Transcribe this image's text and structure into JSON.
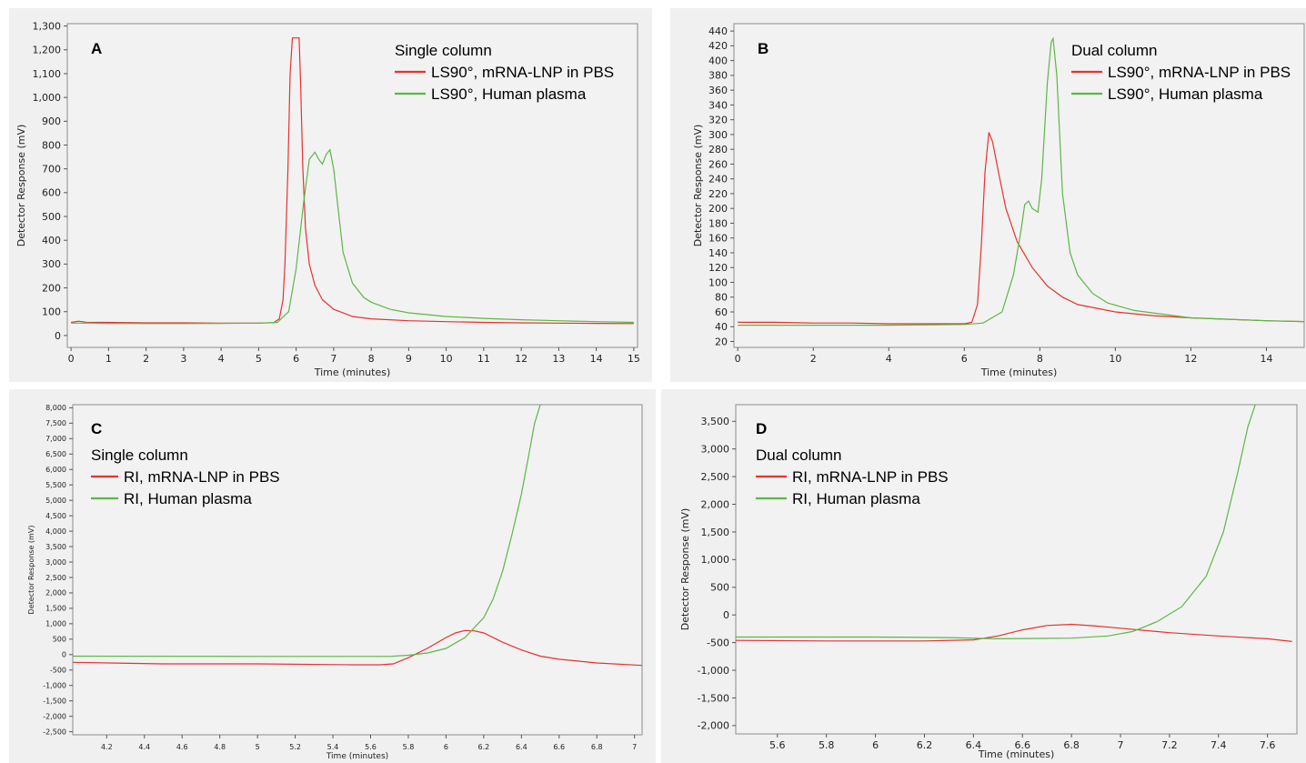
{
  "chart_data": [
    {
      "panel": "A",
      "type": "line",
      "legend_title": "Single column",
      "xlabel": "Time (minutes)",
      "ylabel": "Detector Response (mV)",
      "xlim": [
        -0.1,
        15.1
      ],
      "ylim": [
        -50,
        1310
      ],
      "xticks": [
        0,
        1,
        2,
        3,
        4,
        5,
        6,
        7,
        8,
        9,
        10,
        11,
        12,
        13,
        14,
        15
      ],
      "yticks": [
        0,
        100,
        200,
        300,
        400,
        500,
        600,
        700,
        800,
        900,
        1000,
        1100,
        1200,
        1300
      ],
      "legend_position": "top-right",
      "series": [
        {
          "name": "LS90°, mRNA-LNP in PBS",
          "color": "#e8312e",
          "x": [
            0,
            0.2,
            0.4,
            1,
            2,
            3,
            4,
            5,
            5.4,
            5.55,
            5.65,
            5.7,
            5.78,
            5.84,
            5.9,
            6.08,
            6.12,
            6.18,
            6.25,
            6.35,
            6.5,
            6.7,
            7,
            7.5,
            8,
            9,
            10,
            11,
            12,
            13,
            14,
            15
          ],
          "y": [
            55,
            60,
            56,
            55,
            53,
            53,
            52,
            52,
            54,
            70,
            150,
            300,
            700,
            1100,
            1250,
            1250,
            1050,
            700,
            450,
            300,
            210,
            150,
            110,
            80,
            70,
            62,
            58,
            55,
            53,
            52,
            51,
            50
          ]
        },
        {
          "name": "LS90°, Human plasma",
          "color": "#5ab845",
          "x": [
            0,
            0.5,
            1,
            2,
            3,
            4,
            5,
            5.5,
            5.8,
            6,
            6.2,
            6.35,
            6.5,
            6.6,
            6.7,
            6.8,
            6.9,
            7,
            7.1,
            7.25,
            7.5,
            7.8,
            8,
            8.5,
            9,
            10,
            11,
            12,
            13,
            14,
            15
          ],
          "y": [
            52,
            52,
            51,
            50,
            50,
            51,
            52,
            55,
            100,
            280,
            560,
            740,
            770,
            740,
            720,
            760,
            780,
            700,
            560,
            350,
            220,
            160,
            140,
            110,
            95,
            80,
            72,
            66,
            62,
            58,
            55
          ]
        }
      ]
    },
    {
      "panel": "B",
      "type": "line",
      "legend_title": "Dual column",
      "xlabel": "Time (minutes)",
      "ylabel": "Detector Response (mV)",
      "xlim": [
        -0.1,
        15
      ],
      "ylim": [
        12,
        450
      ],
      "xticks": [
        0,
        2,
        4,
        6,
        8,
        10,
        12,
        14
      ],
      "yticks": [
        20,
        40,
        60,
        80,
        100,
        120,
        140,
        160,
        180,
        200,
        220,
        240,
        260,
        280,
        300,
        320,
        340,
        360,
        380,
        400,
        420,
        440
      ],
      "legend_position": "top-right",
      "series": [
        {
          "name": "LS90°, mRNA-LNP in PBS",
          "color": "#e8312e",
          "x": [
            0,
            1,
            2,
            3,
            4,
            5,
            6,
            6.2,
            6.35,
            6.45,
            6.55,
            6.65,
            6.75,
            6.9,
            7.1,
            7.4,
            7.8,
            8.2,
            8.6,
            9,
            10,
            11,
            12,
            13,
            14,
            15
          ],
          "y": [
            46,
            46,
            45,
            45,
            44,
            44,
            44,
            46,
            70,
            150,
            250,
            303,
            290,
            250,
            200,
            155,
            120,
            95,
            80,
            70,
            60,
            55,
            52,
            50,
            48,
            47
          ]
        },
        {
          "name": "LS90°, Human plasma",
          "color": "#5ab845",
          "x": [
            0,
            2,
            4,
            6,
            6.5,
            7,
            7.3,
            7.5,
            7.6,
            7.7,
            7.8,
            7.95,
            8.05,
            8.2,
            8.3,
            8.35,
            8.45,
            8.6,
            8.8,
            9,
            9.4,
            9.8,
            10.5,
            12,
            14,
            15
          ],
          "y": [
            42,
            42,
            42,
            43,
            45,
            60,
            110,
            170,
            205,
            210,
            200,
            195,
            240,
            370,
            425,
            430,
            380,
            220,
            140,
            110,
            85,
            72,
            62,
            52,
            48,
            47
          ]
        }
      ]
    },
    {
      "panel": "C",
      "type": "line",
      "legend_title": "Single column",
      "xlabel": "Time (minutes)",
      "ylabel": "Detector Response (mV)",
      "xlim": [
        4.02,
        7.04
      ],
      "ylim": [
        -2600,
        8100
      ],
      "xticks": [
        4.2,
        4.4,
        4.6,
        4.8,
        5,
        5.2,
        5.4,
        5.6,
        5.8,
        6,
        6.2,
        6.4,
        6.6,
        6.8,
        7
      ],
      "yticks": [
        -2500,
        -2000,
        -1500,
        -1000,
        -500,
        0,
        500,
        1000,
        1500,
        2000,
        2500,
        3000,
        3500,
        4000,
        4500,
        5000,
        5500,
        6000,
        6500,
        7000,
        7500,
        8000
      ],
      "legend_position": "top-left",
      "series": [
        {
          "name": "RI, mRNA-LNP in PBS",
          "color": "#e8312e",
          "x": [
            4.02,
            4.5,
            5,
            5.5,
            5.65,
            5.72,
            5.8,
            5.9,
            6,
            6.05,
            6.1,
            6.15,
            6.2,
            6.3,
            6.4,
            6.5,
            6.6,
            6.8,
            7.04
          ],
          "y": [
            -250,
            -300,
            -300,
            -330,
            -330,
            -300,
            -100,
            200,
            550,
            700,
            780,
            770,
            700,
            400,
            150,
            -50,
            -150,
            -270,
            -350
          ]
        },
        {
          "name": "RI, Human plasma",
          "color": "#5ab845",
          "x": [
            4.02,
            5,
            5.7,
            5.8,
            5.9,
            6,
            6.1,
            6.2,
            6.25,
            6.3,
            6.35,
            6.4,
            6.44,
            6.47,
            6.5
          ],
          "y": [
            -50,
            -60,
            -60,
            -20,
            50,
            200,
            550,
            1200,
            1800,
            2700,
            3900,
            5200,
            6500,
            7500,
            8100
          ]
        }
      ]
    },
    {
      "panel": "D",
      "type": "line",
      "legend_title": "Dual column",
      "xlabel": "Time (minutes)",
      "ylabel": "Detector Response (mV)",
      "xlim": [
        5.43,
        7.72
      ],
      "ylim": [
        -2150,
        3800
      ],
      "xticks": [
        5.6,
        5.8,
        6,
        6.2,
        6.4,
        6.6,
        6.8,
        7,
        7.2,
        7.4,
        7.6
      ],
      "yticks": [
        -2000,
        -1500,
        -1000,
        -500,
        0,
        500,
        1000,
        1500,
        2000,
        2500,
        3000,
        3500
      ],
      "legend_position": "top-left",
      "series": [
        {
          "name": "RI, mRNA-LNP in PBS",
          "color": "#e8312e",
          "x": [
            5.43,
            5.8,
            6.2,
            6.4,
            6.5,
            6.6,
            6.7,
            6.8,
            6.9,
            7,
            7.2,
            7.4,
            7.6,
            7.7
          ],
          "y": [
            -460,
            -470,
            -470,
            -450,
            -380,
            -270,
            -190,
            -170,
            -200,
            -240,
            -320,
            -380,
            -430,
            -480
          ]
        },
        {
          "name": "RI, Human plasma",
          "color": "#5ab845",
          "x": [
            5.43,
            6,
            6.3,
            6.5,
            6.8,
            6.95,
            7.05,
            7.15,
            7.25,
            7.35,
            7.42,
            7.48,
            7.52,
            7.55
          ],
          "y": [
            -400,
            -400,
            -410,
            -430,
            -420,
            -380,
            -300,
            -120,
            150,
            700,
            1500,
            2600,
            3400,
            3800
          ]
        }
      ]
    }
  ]
}
